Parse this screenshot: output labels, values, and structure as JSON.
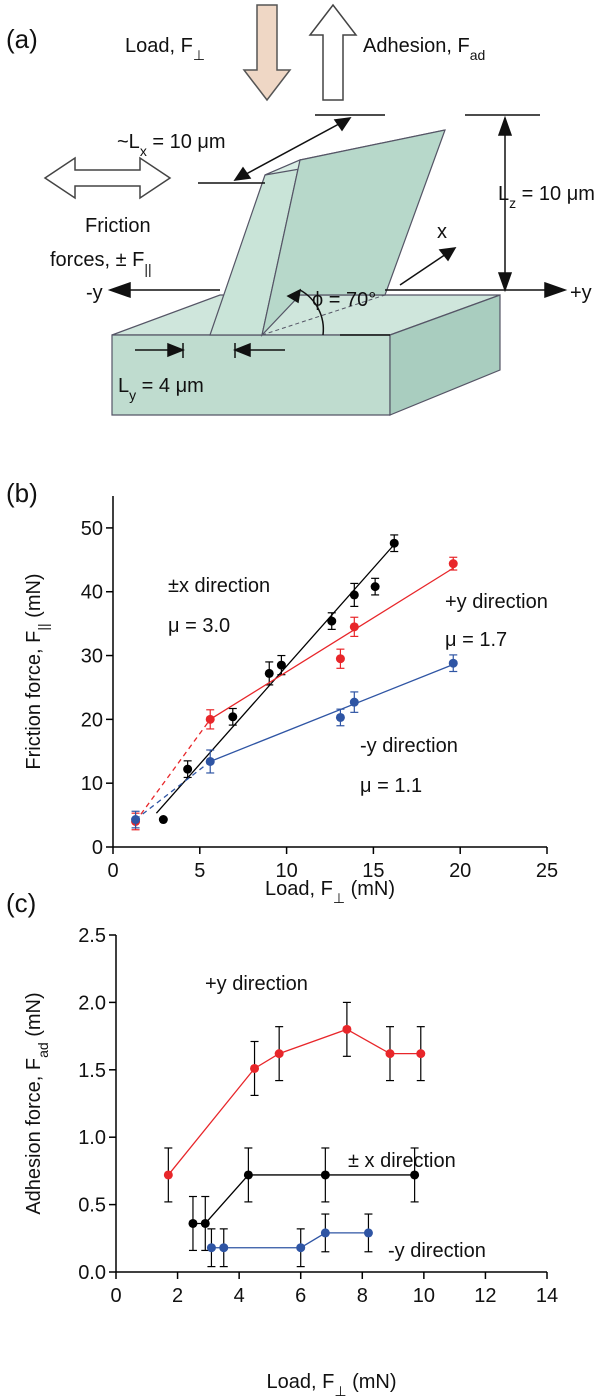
{
  "diagram": {
    "panel": "(a)",
    "load": {
      "text": "Load, F",
      "sub": "⊥"
    },
    "adhesion": {
      "text": "Adhesion, F",
      "sub": "ad"
    },
    "lx": {
      "pre": "~L",
      "sub": "x",
      "post": " = 10 μm"
    },
    "lz": {
      "pre": "L",
      "sub": "z",
      "post": " = 10 μm"
    },
    "friction1": "Friction",
    "friction2": {
      "text": "forces, ± F",
      "sub": "||"
    },
    "minus_y": "-y",
    "plus_y": "+y",
    "x": "x",
    "phi": "ϕ = 70°",
    "ly": {
      "pre": "L",
      "sub": "y",
      "post": " = 4 μm"
    }
  },
  "chart_data": [
    {
      "type": "scatter",
      "panel": "(b)",
      "xlabel": {
        "pre": "Load, F",
        "sub": "⊥",
        "post": " (mN)"
      },
      "ylabel": {
        "pre": "Friction force, F",
        "sub": "||",
        "post": " (mN)"
      },
      "xlim": [
        0,
        25
      ],
      "xticks": [
        0,
        5,
        10,
        15,
        20,
        25
      ],
      "ylim": [
        0,
        55
      ],
      "yticks": [
        0,
        10,
        20,
        30,
        40,
        50
      ],
      "annotations": [
        "±x direction",
        "μ = 3.0",
        "+y direction",
        "μ = 1.7",
        "-y direction",
        "μ = 1.1"
      ],
      "series": [
        {
          "name": "±x direction",
          "color": "#000000",
          "x": [
            2.9,
            4.3,
            6.9,
            9.0,
            9.7,
            12.6,
            13.9,
            15.1,
            16.2
          ],
          "values": [
            4.3,
            12.2,
            20.4,
            27.2,
            28.5,
            35.4,
            39.5,
            40.8,
            47.6
          ],
          "errors": [
            0,
            1.3,
            1.3,
            1.8,
            1.5,
            1.3,
            1.8,
            1.3,
            1.3
          ],
          "fit": {
            "x": [
              2.5,
              16.2
            ],
            "y": [
              5.3,
              47.4
            ]
          }
        },
        {
          "name": "+y direction",
          "color": "#e8262a",
          "x": [
            1.3,
            5.6,
            13.1,
            13.9,
            19.6
          ],
          "values": [
            4.0,
            20.0,
            29.5,
            34.5,
            44.4
          ],
          "errors": [
            1.3,
            1.5,
            1.5,
            1.5,
            1.0
          ],
          "fit": {
            "x": [
              5.6,
              19.6
            ],
            "y": [
              20.0,
              43.7
            ]
          },
          "fit_dashed": {
            "x": [
              1.3,
              5.6
            ],
            "y": [
              4.0,
              20.0
            ]
          }
        },
        {
          "name": "-y direction",
          "color": "#2f55a4",
          "x": [
            1.3,
            5.6,
            13.1,
            13.9,
            19.6
          ],
          "values": [
            4.3,
            13.4,
            20.3,
            22.7,
            28.8
          ],
          "errors": [
            1.3,
            1.8,
            1.3,
            1.6,
            1.3
          ],
          "fit": {
            "x": [
              5.6,
              19.6
            ],
            "y": [
              13.4,
              28.6
            ]
          },
          "fit_dashed": {
            "x": [
              1.3,
              5.6
            ],
            "y": [
              4.3,
              13.4
            ]
          }
        }
      ]
    },
    {
      "type": "line",
      "panel": "(c)",
      "xlabel": {
        "pre": "Load, F",
        "sub": "⊥",
        "post": " (mN)"
      },
      "ylabel": {
        "pre": "Adhesion force, F",
        "sub": "ad",
        "post": "  (mN)"
      },
      "xlim": [
        0,
        14
      ],
      "xticks": [
        0,
        2,
        4,
        6,
        8,
        10,
        12,
        14
      ],
      "ylim": [
        0,
        2.5
      ],
      "yticks": [
        {
          "value": 0,
          "label": "0.0"
        },
        0.5,
        {
          "value": 1,
          "label": "1.0"
        },
        1.5,
        {
          "value": 2,
          "label": "2.0"
        },
        2.5
      ],
      "annotations": [
        "+y direction",
        "± x direction",
        "-y direction"
      ],
      "series": [
        {
          "name": "+y direction",
          "color": "#e8262a",
          "x": [
            1.7,
            4.5,
            5.3,
            7.5,
            8.9,
            9.9
          ],
          "values": [
            0.72,
            1.51,
            1.62,
            1.8,
            1.62,
            1.62
          ],
          "errors": [
            0.2,
            0.2,
            0.2,
            0.2,
            0.2,
            0.2
          ]
        },
        {
          "name": "± x direction",
          "color": "#000000",
          "x": [
            2.5,
            2.9,
            4.3,
            6.8,
            9.7
          ],
          "values": [
            0.36,
            0.36,
            0.72,
            0.72,
            0.72
          ],
          "errors": [
            0.2,
            0.2,
            0.2,
            0.2,
            0.2
          ]
        },
        {
          "name": "-y direction",
          "color": "#2f55a4",
          "x": [
            3.1,
            3.5,
            6.0,
            6.8,
            8.2
          ],
          "values": [
            0.18,
            0.18,
            0.18,
            0.29,
            0.29
          ],
          "errors": [
            0.14,
            0.14,
            0.14,
            0.14,
            0.14
          ]
        }
      ]
    }
  ]
}
